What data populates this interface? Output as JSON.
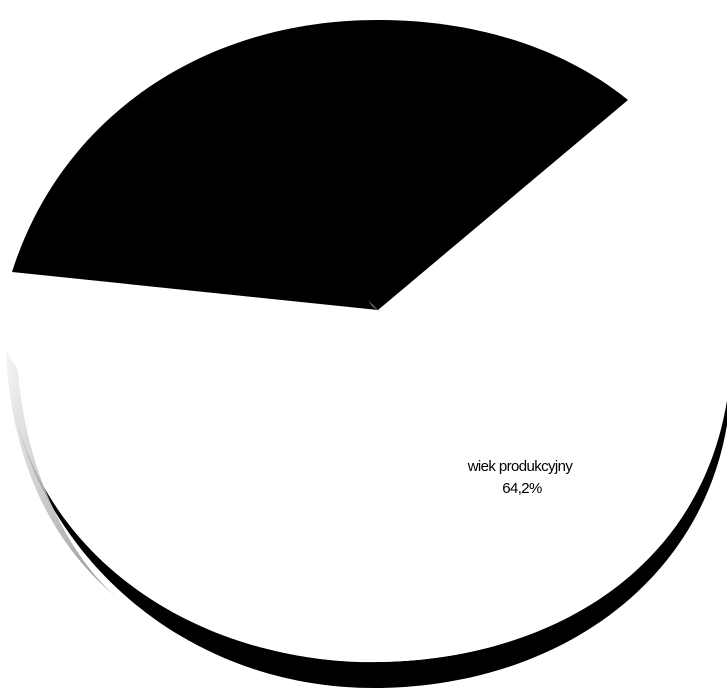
{
  "chart_data": {
    "type": "pie",
    "style": "3d",
    "slices": [
      {
        "label": "wiek produkcyjny",
        "value": 64.2,
        "value_text": "64,2%",
        "color": "#ffffff"
      },
      {
        "label": "",
        "value": 35.8,
        "value_text": "",
        "color": "#000000"
      }
    ],
    "title": "",
    "legend": "none"
  }
}
